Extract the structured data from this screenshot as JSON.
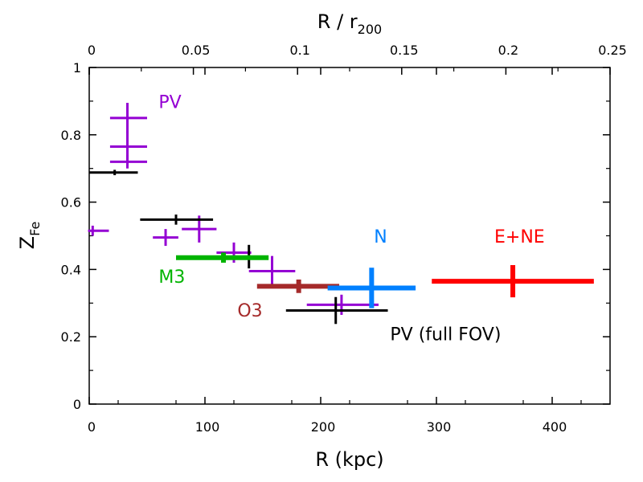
{
  "chart_data": {
    "type": "scatter",
    "xlabel": "R (kpc)",
    "ylabel": {
      "main": "Z",
      "sub": "Fe"
    },
    "top_xlabel": {
      "main": "R / r",
      "sub": "200"
    },
    "xlim": [
      0,
      450
    ],
    "ylim": [
      0,
      1
    ],
    "top_xlim": [
      0,
      0.25
    ],
    "x_ticks": [
      "0",
      "100",
      "200",
      "300",
      "400"
    ],
    "y_ticks": [
      "0",
      "0.2",
      "0.4",
      "0.6",
      "0.8",
      "1"
    ],
    "top_ticks": [
      "0",
      "0.05",
      "0.1",
      "0.15",
      "0.2",
      "0.25"
    ],
    "grid": false,
    "series": [
      {
        "name": "PV",
        "color": "#9400D3",
        "points": [
          {
            "x": 3,
            "y": 0.515,
            "xerr": [
              4,
              14
            ],
            "yerr": [
              0.015,
              0.015
            ]
          },
          {
            "x": 33,
            "y": 0.85,
            "xerr": [
              15,
              17
            ],
            "yerr": [
              0.045,
              0.045
            ]
          },
          {
            "x": 33,
            "y": 0.765,
            "xerr": [
              15,
              17
            ],
            "yerr": [
              0.045,
              0.045
            ]
          },
          {
            "x": 33,
            "y": 0.72,
            "xerr": [
              15,
              17
            ],
            "yerr": [
              0.02,
              0.02
            ]
          },
          {
            "x": 66,
            "y": 0.495,
            "xerr": [
              11,
              11
            ],
            "yerr": [
              0.025,
              0.025
            ]
          },
          {
            "x": 95,
            "y": 0.52,
            "xerr": [
              15,
              15
            ],
            "yerr": [
              0.04,
              0.04
            ]
          },
          {
            "x": 125,
            "y": 0.45,
            "xerr": [
              15,
              15
            ],
            "yerr": [
              0.03,
              0.03
            ]
          },
          {
            "x": 158,
            "y": 0.395,
            "xerr": [
              20,
              20
            ],
            "yerr": [
              0.045,
              0.045
            ]
          },
          {
            "x": 218,
            "y": 0.295,
            "xerr": [
              30,
              32
            ],
            "yerr": [
              0.03,
              0.03
            ]
          }
        ]
      },
      {
        "name": "PV (full FOV)",
        "color": "#000000",
        "points": [
          {
            "x": 22,
            "y": 0.688,
            "xerr": [
              22,
              20
            ],
            "yerr": [
              0.008,
              0.008
            ]
          },
          {
            "x": 75,
            "y": 0.548,
            "xerr": [
              31,
              32
            ],
            "yerr": [
              0.015,
              0.015
            ]
          },
          {
            "x": 138,
            "y": 0.438,
            "xerr": [
              23,
              12
            ],
            "yerr": [
              0.035,
              0.035
            ]
          },
          {
            "x": 213,
            "y": 0.278,
            "xerr": [
              43,
              45
            ],
            "yerr": [
              0.04,
              0.04
            ]
          }
        ]
      },
      {
        "name": "M3",
        "color": "#00B400",
        "points": [
          {
            "x": 116,
            "y": 0.435,
            "xerr": [
              41,
              39
            ],
            "yerr": [
              0.015,
              0.015
            ]
          }
        ]
      },
      {
        "name": "O3",
        "color": "#A52A2A",
        "points": [
          {
            "x": 181,
            "y": 0.35,
            "xerr": [
              36,
              35
            ],
            "yerr": [
              0.02,
              0.02
            ]
          }
        ]
      },
      {
        "name": "N",
        "color": "#0080FF",
        "points": [
          {
            "x": 244,
            "y": 0.345,
            "xerr": [
              38,
              38
            ],
            "yerr": [
              0.06,
              0.06
            ]
          }
        ]
      },
      {
        "name": "E+NE",
        "color": "#FF0000",
        "points": [
          {
            "x": 366,
            "y": 0.365,
            "xerr": [
              70,
              70
            ],
            "yerr": [
              0.048,
              0.048
            ]
          }
        ]
      }
    ],
    "annotations": [
      {
        "text": "PV",
        "color": "#9400D3",
        "x": 60,
        "y": 0.88
      },
      {
        "text": "M3",
        "color": "#00B400",
        "x": 60,
        "y": 0.36
      },
      {
        "text": "O3",
        "color": "#A52A2A",
        "x": 128,
        "y": 0.26
      },
      {
        "text": "N",
        "color": "#0080FF",
        "x": 246,
        "y": 0.48
      },
      {
        "text": "E+NE",
        "color": "#FF0000",
        "x": 350,
        "y": 0.48
      },
      {
        "text": "PV (full FOV)",
        "color": "#000000",
        "x": 260,
        "y": 0.19
      }
    ]
  }
}
